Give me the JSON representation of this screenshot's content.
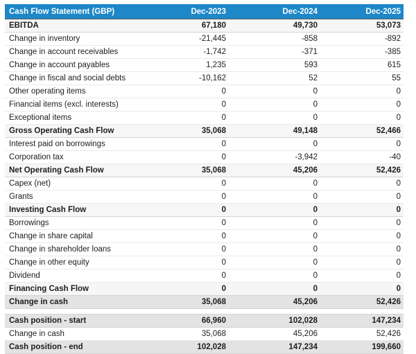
{
  "report": {
    "title": "Cash Flow Statement (GBP)",
    "columns": [
      "Dec-2023",
      "Dec-2024",
      "Dec-2025"
    ],
    "main_rows": [
      {
        "label": "EBITDA",
        "values": [
          "67,180",
          "49,730",
          "53,073"
        ],
        "style": "subtotal"
      },
      {
        "label": "Change in inventory",
        "values": [
          "-21,445",
          "-858",
          "-892"
        ],
        "style": "normal"
      },
      {
        "label": "Change in account receivables",
        "values": [
          "-1,742",
          "-371",
          "-385"
        ],
        "style": "normal"
      },
      {
        "label": "Change in account payables",
        "values": [
          "1,235",
          "593",
          "615"
        ],
        "style": "normal"
      },
      {
        "label": "Change in fiscal and social debts",
        "values": [
          "-10,162",
          "52",
          "55"
        ],
        "style": "normal"
      },
      {
        "label": "Other operating items",
        "values": [
          "0",
          "0",
          "0"
        ],
        "style": "normal"
      },
      {
        "label": "Financial items (excl. interests)",
        "values": [
          "0",
          "0",
          "0"
        ],
        "style": "normal"
      },
      {
        "label": "Exceptional items",
        "values": [
          "0",
          "0",
          "0"
        ],
        "style": "normal"
      },
      {
        "label": "Gross Operating Cash Flow",
        "values": [
          "35,068",
          "49,148",
          "52,466"
        ],
        "style": "subtotal"
      },
      {
        "label": "Interest paid on borrowings",
        "values": [
          "0",
          "0",
          "0"
        ],
        "style": "normal"
      },
      {
        "label": "Corporation tax",
        "values": [
          "0",
          "-3,942",
          "-40"
        ],
        "style": "normal"
      },
      {
        "label": "Net Operating Cash Flow",
        "values": [
          "35,068",
          "45,206",
          "52,426"
        ],
        "style": "subtotal"
      },
      {
        "label": "Capex (net)",
        "values": [
          "0",
          "0",
          "0"
        ],
        "style": "normal"
      },
      {
        "label": "Grants",
        "values": [
          "0",
          "0",
          "0"
        ],
        "style": "normal"
      },
      {
        "label": "Investing Cash Flow",
        "values": [
          "0",
          "0",
          "0"
        ],
        "style": "subtotal"
      },
      {
        "label": "Borrowings",
        "values": [
          "0",
          "0",
          "0"
        ],
        "style": "normal"
      },
      {
        "label": "Change in share capital",
        "values": [
          "0",
          "0",
          "0"
        ],
        "style": "normal"
      },
      {
        "label": "Change in shareholder loans",
        "values": [
          "0",
          "0",
          "0"
        ],
        "style": "normal"
      },
      {
        "label": "Change in other equity",
        "values": [
          "0",
          "0",
          "0"
        ],
        "style": "normal"
      },
      {
        "label": "Dividend",
        "values": [
          "0",
          "0",
          "0"
        ],
        "style": "normal"
      },
      {
        "label": "Financing Cash Flow",
        "values": [
          "0",
          "0",
          "0"
        ],
        "style": "subtotal"
      },
      {
        "label": "Change in cash",
        "values": [
          "35,068",
          "45,206",
          "52,426"
        ],
        "style": "total"
      }
    ],
    "cash_position_rows": [
      {
        "label": "Cash position - start",
        "values": [
          "66,960",
          "102,028",
          "147,234"
        ],
        "style": "total"
      },
      {
        "label": "Change in cash",
        "values": [
          "35,068",
          "45,206",
          "52,426"
        ],
        "style": "normal"
      },
      {
        "label": "Cash position - end",
        "values": [
          "102,028",
          "147,234",
          "199,660"
        ],
        "style": "total"
      }
    ],
    "colors": {
      "header_bg": "#1d87c8",
      "header_text": "#ffffff",
      "subtotal_row_bg": "#f6f6f6",
      "total_row_bg": "#e3e3e3",
      "row_border": "#eaeaea",
      "strong_border": "#d4d4d4",
      "header_border": "#5a5a5a",
      "text": "#1d1d1d"
    }
  }
}
